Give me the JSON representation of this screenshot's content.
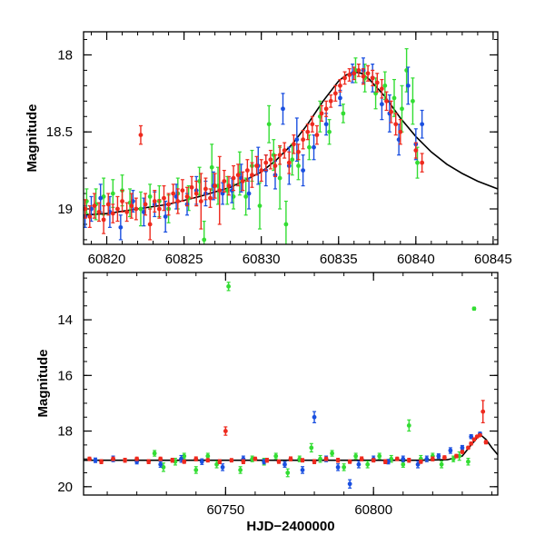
{
  "chart_data": [
    {
      "type": "scatter",
      "panel": "top",
      "xlabel": "",
      "ylabel": "Magnitude",
      "xlim": [
        60818.5,
        60845.3
      ],
      "ylim": [
        19.23,
        17.85
      ],
      "y_inverted": true,
      "x_ticks": [
        60820,
        60825,
        60830,
        60835,
        60840,
        60845
      ],
      "x_tick_labels": [
        "60820",
        "60825",
        "60830",
        "60835",
        "60840",
        "60845"
      ],
      "y_ticks": [
        18,
        18.5,
        19
      ],
      "y_tick_labels": [
        "18",
        "18.5",
        "19"
      ],
      "colors": {
        "green": "#33dd33",
        "blue": "#1a4fe0",
        "red": "#ee2a1e",
        "model": "#000000"
      },
      "model_curve": {
        "x": [
          60818.5,
          60820,
          60822,
          60824,
          60826,
          60828,
          60830,
          60831,
          60832,
          60833,
          60834,
          60835,
          60835.5,
          60836,
          60836.5,
          60837,
          60838,
          60839,
          60840,
          60841,
          60842,
          60843,
          60844,
          60845.3
        ],
        "y": [
          19.04,
          19.03,
          19.0,
          18.97,
          18.92,
          18.86,
          18.76,
          18.68,
          18.58,
          18.45,
          18.3,
          18.17,
          18.13,
          18.11,
          18.12,
          18.16,
          18.27,
          18.41,
          18.53,
          18.63,
          18.71,
          18.77,
          18.82,
          18.87
        ]
      },
      "series": [
        {
          "color": "green",
          "x": [
            60818.7,
            60819.3,
            60819.8,
            60820.4,
            60821.0,
            60821.5,
            60822.2,
            60822.8,
            60823.4,
            60824.0,
            60824.6,
            60825.3,
            60826.0,
            60826.3,
            60826.8,
            60827.2,
            60827.8,
            60828.2,
            60828.6,
            60829.0,
            60829.4,
            60829.9,
            60830.5,
            60830.8,
            60831.2,
            60831.6,
            60832.0,
            60832.4,
            60833.1,
            60833.8,
            60834.4,
            60835.3,
            60836.1,
            60836.7,
            60837.4,
            60838.0,
            60838.6,
            60839.1,
            60839.4,
            60839.8,
            60840.1
          ],
          "y": [
            18.95,
            18.97,
            18.92,
            18.9,
            18.88,
            18.96,
            19.0,
            18.92,
            18.95,
            19.0,
            18.9,
            18.93,
            18.82,
            19.2,
            18.73,
            18.85,
            18.88,
            18.92,
            18.77,
            18.92,
            18.72,
            18.98,
            18.45,
            18.65,
            18.8,
            19.1,
            18.68,
            18.72,
            18.6,
            18.4,
            18.5,
            18.38,
            18.1,
            18.15,
            18.25,
            18.2,
            18.28,
            18.35,
            18.1,
            18.3,
            18.7
          ],
          "err": [
            0.08,
            0.1,
            0.12,
            0.09,
            0.1,
            0.09,
            0.11,
            0.08,
            0.1,
            0.09,
            0.1,
            0.08,
            0.09,
            0.12,
            0.15,
            0.12,
            0.09,
            0.08,
            0.14,
            0.12,
            0.1,
            0.15,
            0.12,
            0.1,
            0.2,
            0.15,
            0.1,
            0.09,
            0.08,
            0.1,
            0.08,
            0.06,
            0.08,
            0.09,
            0.1,
            0.09,
            0.12,
            0.15,
            0.14,
            0.15,
            0.1
          ]
        },
        {
          "color": "blue",
          "x": [
            60818.6,
            60819.0,
            60819.6,
            60820.2,
            60820.9,
            60821.7,
            60822.4,
            60823.1,
            60823.8,
            60824.5,
            60825.2,
            60825.8,
            60826.4,
            60826.9,
            60827.5,
            60828.1,
            60828.7,
            60829.2,
            60829.8,
            60830.3,
            60830.9,
            60831.4,
            60831.8,
            60832.3,
            60832.7,
            60833.4,
            60834.2,
            60835.1,
            60835.9,
            60836.6,
            60837.2,
            60837.8,
            60838.3,
            60838.9,
            60839.5,
            60840.0,
            60840.4
          ],
          "y": [
            19.05,
            19.0,
            18.93,
            19.02,
            19.12,
            18.95,
            19.02,
            18.97,
            19.05,
            18.92,
            18.97,
            18.88,
            18.9,
            18.85,
            18.9,
            18.88,
            18.8,
            18.9,
            18.72,
            18.75,
            18.78,
            18.35,
            18.72,
            18.55,
            18.75,
            18.6,
            18.45,
            18.28,
            18.12,
            18.1,
            18.15,
            18.32,
            18.38,
            18.55,
            18.2,
            18.58,
            18.45
          ],
          "err": [
            0.07,
            0.08,
            0.09,
            0.1,
            0.08,
            0.07,
            0.09,
            0.08,
            0.1,
            0.08,
            0.07,
            0.09,
            0.08,
            0.09,
            0.07,
            0.08,
            0.09,
            0.1,
            0.12,
            0.1,
            0.09,
            0.1,
            0.12,
            0.14,
            0.1,
            0.08,
            0.07,
            0.05,
            0.06,
            0.08,
            0.09,
            0.1,
            0.12,
            0.1,
            0.12,
            0.1,
            0.09
          ]
        },
        {
          "color": "red",
          "x": [
            60818.6,
            60818.9,
            60819.2,
            60819.5,
            60819.8,
            60820.1,
            60820.4,
            60820.7,
            60821.0,
            60821.3,
            60821.6,
            60821.9,
            60822.2,
            60822.5,
            60822.8,
            60823.1,
            60823.4,
            60823.7,
            60824.0,
            60824.3,
            60824.6,
            60824.9,
            60825.2,
            60825.5,
            60825.8,
            60826.1,
            60826.4,
            60826.7,
            60827.0,
            60827.3,
            60827.6,
            60827.9,
            60828.2,
            60828.5,
            60828.8,
            60829.1,
            60829.4,
            60829.7,
            60830.0,
            60830.3,
            60830.6,
            60830.9,
            60831.2,
            60831.5,
            60831.8,
            60832.1,
            60832.4,
            60832.7,
            60833.0,
            60833.3,
            60833.6,
            60833.9,
            60834.2,
            60834.5,
            60834.8,
            60835.1,
            60835.4,
            60835.7,
            60836.0,
            60836.3,
            60836.6,
            60836.9,
            60837.2,
            60837.5,
            60837.8,
            60838.1,
            60838.4,
            60838.7,
            60839.0,
            60840.0,
            60840.4
          ],
          "y": [
            19.0,
            19.05,
            18.98,
            19.02,
            19.07,
            18.97,
            19.03,
            19.0,
            18.95,
            19.02,
            18.98,
            19.0,
            18.52,
            18.97,
            19.1,
            18.95,
            19.0,
            18.93,
            18.97,
            18.9,
            18.95,
            18.88,
            18.92,
            18.86,
            18.9,
            18.95,
            18.87,
            18.93,
            18.85,
            18.88,
            18.82,
            18.85,
            18.8,
            18.78,
            18.82,
            18.75,
            18.78,
            18.72,
            18.75,
            18.7,
            18.68,
            18.72,
            18.65,
            18.62,
            18.7,
            18.58,
            18.63,
            18.55,
            18.5,
            18.45,
            18.52,
            18.38,
            18.35,
            18.3,
            18.25,
            18.2,
            18.15,
            18.13,
            18.12,
            18.1,
            18.14,
            18.12,
            18.15,
            18.18,
            18.22,
            18.3,
            18.37,
            18.45,
            18.5,
            18.62,
            18.7
          ],
          "err": [
            0.06,
            0.07,
            0.08,
            0.06,
            0.09,
            0.07,
            0.06,
            0.08,
            0.07,
            0.06,
            0.08,
            0.07,
            0.06,
            0.07,
            0.1,
            0.07,
            0.06,
            0.08,
            0.07,
            0.06,
            0.08,
            0.07,
            0.06,
            0.07,
            0.08,
            0.18,
            0.07,
            0.06,
            0.08,
            0.22,
            0.07,
            0.06,
            0.08,
            0.07,
            0.06,
            0.07,
            0.08,
            0.06,
            0.07,
            0.05,
            0.06,
            0.07,
            0.06,
            0.05,
            0.07,
            0.06,
            0.05,
            0.06,
            0.05,
            0.05,
            0.06,
            0.05,
            0.05,
            0.04,
            0.05,
            0.04,
            0.04,
            0.04,
            0.04,
            0.04,
            0.05,
            0.05,
            0.05,
            0.06,
            0.06,
            0.06,
            0.07,
            0.07,
            0.08,
            0.05,
            0.06
          ]
        }
      ]
    },
    {
      "type": "scatter",
      "panel": "bottom",
      "xlabel": "HJD−2400000",
      "ylabel": "Magnitude",
      "xlim": [
        60702,
        60842
      ],
      "ylim": [
        20.3,
        12.3
      ],
      "y_inverted": true,
      "x_ticks": [
        60750,
        60800
      ],
      "x_tick_labels": [
        "60750",
        "60800"
      ],
      "y_ticks": [
        14,
        16,
        18,
        20
      ],
      "y_tick_labels": [
        "14",
        "16",
        "18",
        "20"
      ],
      "colors": {
        "green": "#33dd33",
        "blue": "#1a4fe0",
        "red": "#ee2a1e",
        "model": "#000000"
      },
      "model_curve": {
        "x": [
          60702,
          60720,
          60740,
          60760,
          60780,
          60800,
          60815,
          60825,
          60830,
          60833,
          60836,
          60838,
          60840,
          60842
        ],
        "y": [
          19.05,
          19.05,
          19.05,
          19.05,
          19.05,
          19.05,
          19.05,
          19.03,
          18.9,
          18.5,
          18.12,
          18.3,
          18.6,
          18.85
        ]
      },
      "series": [
        {
          "color": "green",
          "x": [
            60726,
            60729,
            60733,
            60736,
            60740,
            60744,
            60747,
            60751,
            60755,
            60759,
            60763,
            60767,
            60771,
            60775,
            60779,
            60782,
            60786,
            60790,
            60794,
            60798,
            60802,
            60806,
            60810,
            60812,
            60816,
            60820,
            60823,
            60827,
            60829,
            60832,
            60834
          ],
          "y": [
            18.8,
            19.3,
            19.1,
            18.9,
            19.4,
            18.9,
            19.2,
            12.8,
            19.4,
            19.0,
            19.1,
            18.9,
            19.5,
            19.0,
            18.6,
            19.0,
            18.8,
            19.3,
            18.9,
            19.2,
            18.9,
            19.0,
            19.2,
            17.8,
            19.0,
            18.9,
            19.2,
            19.0,
            18.9,
            19.1,
            13.6
          ],
          "err": [
            0.1,
            0.15,
            0.12,
            0.1,
            0.12,
            0.1,
            0.12,
            0.15,
            0.12,
            0.1,
            0.12,
            0.1,
            0.14,
            0.1,
            0.15,
            0.12,
            0.1,
            0.12,
            0.1,
            0.12,
            0.1,
            0.12,
            0.1,
            0.2,
            0.12,
            0.1,
            0.12,
            0.1,
            0.15,
            0.12,
            0.05
          ]
        },
        {
          "color": "blue",
          "x": [
            60706,
            60712,
            60720,
            60728,
            60735,
            60742,
            60749,
            60756,
            60763,
            60770,
            60776,
            60780,
            60784,
            60788,
            60792,
            60795,
            60800,
            60805,
            60810,
            60815,
            60818,
            60822,
            60826,
            60830,
            60833,
            60836
          ],
          "y": [
            19.05,
            19.0,
            19.1,
            19.2,
            19.0,
            19.1,
            19.3,
            19.0,
            19.1,
            19.2,
            19.4,
            17.5,
            19.0,
            19.3,
            19.9,
            19.2,
            19.0,
            19.1,
            19.0,
            19.2,
            19.0,
            18.9,
            18.7,
            18.6,
            18.2,
            18.1
          ],
          "err": [
            0.08,
            0.1,
            0.08,
            0.1,
            0.12,
            0.1,
            0.12,
            0.1,
            0.08,
            0.1,
            0.12,
            0.2,
            0.1,
            0.12,
            0.15,
            0.12,
            0.1,
            0.08,
            0.1,
            0.12,
            0.1,
            0.08,
            0.1,
            0.08,
            0.07,
            0.06
          ]
        },
        {
          "color": "red",
          "x": [
            60704,
            60708,
            60712,
            60716,
            60720,
            60724,
            60728,
            60732,
            60736,
            60740,
            60744,
            60748,
            60750,
            60752,
            60756,
            60760,
            60764,
            60768,
            60772,
            60776,
            60780,
            60784,
            60788,
            60792,
            60796,
            60800,
            60804,
            60808,
            60812,
            60816,
            60820,
            60824,
            60828,
            60830,
            60832,
            60833,
            60834,
            60835,
            60836,
            60837,
            60838
          ],
          "y": [
            19.0,
            19.1,
            19.0,
            19.05,
            19.0,
            19.1,
            19.0,
            19.05,
            19.1,
            19.0,
            19.05,
            19.1,
            18.0,
            19.05,
            19.1,
            19.0,
            19.05,
            19.1,
            19.0,
            19.05,
            19.1,
            19.0,
            19.05,
            19.1,
            19.0,
            19.05,
            19.1,
            19.0,
            19.05,
            19.1,
            19.0,
            18.95,
            18.9,
            18.75,
            18.6,
            18.45,
            18.3,
            18.2,
            18.15,
            17.3,
            18.4
          ],
          "err": [
            0.06,
            0.07,
            0.06,
            0.07,
            0.06,
            0.07,
            0.06,
            0.07,
            0.06,
            0.07,
            0.06,
            0.07,
            0.15,
            0.06,
            0.07,
            0.06,
            0.07,
            0.06,
            0.07,
            0.06,
            0.07,
            0.06,
            0.07,
            0.06,
            0.07,
            0.06,
            0.07,
            0.06,
            0.07,
            0.06,
            0.07,
            0.06,
            0.06,
            0.05,
            0.05,
            0.05,
            0.05,
            0.04,
            0.04,
            0.4,
            0.06
          ]
        }
      ]
    }
  ]
}
